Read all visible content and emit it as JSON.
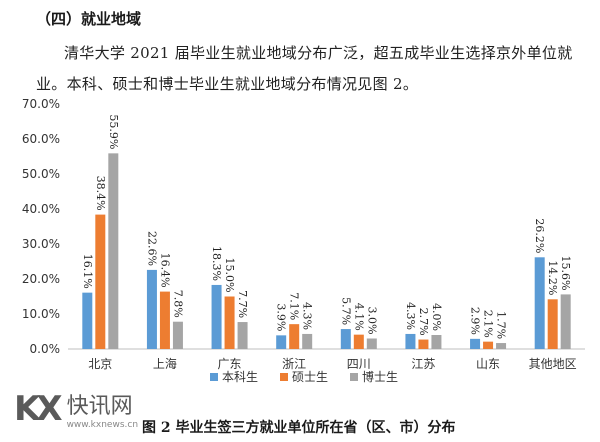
{
  "section_heading": "（四）就业地域",
  "paragraph": "清华大学 2021 届毕业生就业地域分布广泛，超五成毕业生选择京外单位就业。本科、硕士和博士毕业生就业地域分布情况见图 2。",
  "watermark": {
    "logo": "KX",
    "name": "快讯网",
    "url": "www.kxnews.cn"
  },
  "chart_data": {
    "type": "bar",
    "title": "图 2 毕业生签三方就业单位所在省（区、市）分布",
    "categories": [
      "北京",
      "上海",
      "广东",
      "浙江",
      "四川",
      "江苏",
      "山东",
      "其他地区"
    ],
    "series": [
      {
        "name": "本科生",
        "color": "#5b9bd5",
        "values": [
          16.1,
          22.6,
          18.3,
          3.9,
          5.7,
          4.3,
          2.9,
          26.2
        ],
        "labels": [
          "16.1%",
          "22.6%",
          "18.3%",
          "3.9%",
          "5.7%",
          "4.3%",
          "2.9%",
          "26.2%"
        ]
      },
      {
        "name": "硕士生",
        "color": "#ed7d31",
        "values": [
          38.4,
          16.4,
          15.0,
          7.1,
          4.1,
          2.7,
          2.1,
          14.2
        ],
        "labels": [
          "38.4%",
          "16.4%",
          "15.0%",
          "7.1%",
          "4.1%",
          "2.7%",
          "2.1%",
          "14.2%"
        ]
      },
      {
        "name": "博士生",
        "color": "#a5a5a5",
        "values": [
          55.9,
          7.8,
          7.7,
          4.3,
          3.0,
          4.0,
          1.7,
          15.6
        ],
        "labels": [
          "55.9%",
          "7.8%",
          "7.7%",
          "4.3%",
          "3.0%",
          "4.0%",
          "1.7%",
          "15.6%"
        ]
      }
    ],
    "yticks": [
      "0.0%",
      "10.0%",
      "20.0%",
      "30.0%",
      "40.0%",
      "50.0%",
      "60.0%",
      "70.0%"
    ],
    "ylim": [
      0,
      70
    ],
    "grid": false,
    "legend_position": "bottom"
  }
}
